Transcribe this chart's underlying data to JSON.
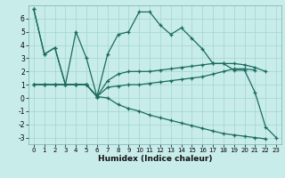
{
  "xlabel": "Humidex (Indice chaleur)",
  "background_color": "#c8ecea",
  "grid_color": "#a8d8d4",
  "line_color": "#1a6b5e",
  "xlim": [
    -0.5,
    23.5
  ],
  "ylim": [
    -3.5,
    7.0
  ],
  "yticks": [
    -3,
    -2,
    -1,
    0,
    1,
    2,
    3,
    4,
    5,
    6
  ],
  "xticks": [
    0,
    1,
    2,
    3,
    4,
    5,
    6,
    7,
    8,
    9,
    10,
    11,
    12,
    13,
    14,
    15,
    16,
    17,
    18,
    19,
    20,
    21,
    22,
    23
  ],
  "series": [
    {
      "x": [
        0,
        1,
        2,
        3,
        4,
        5,
        6,
        7,
        8,
        9,
        10,
        11,
        12,
        13,
        14,
        15,
        16,
        17,
        18,
        19,
        20,
        21,
        22,
        23
      ],
      "y": [
        6.7,
        3.3,
        3.8,
        1.0,
        5.0,
        3.0,
        0.1,
        3.3,
        4.8,
        5.0,
        6.5,
        6.5,
        5.5,
        4.8,
        5.3,
        4.5,
        3.7,
        2.6,
        2.6,
        2.1,
        2.1,
        0.4,
        -2.2,
        -3.0
      ]
    },
    {
      "x": [
        0,
        1,
        2,
        3,
        4,
        5,
        6
      ],
      "y": [
        6.7,
        3.3,
        3.8,
        1.0,
        1.0,
        1.0,
        0.1
      ]
    },
    {
      "x": [
        0,
        1,
        2,
        3,
        4,
        5,
        6,
        7,
        8,
        9,
        10,
        11,
        12,
        13,
        14,
        15,
        16,
        17,
        18,
        19,
        20,
        21,
        22
      ],
      "y": [
        1.0,
        1.0,
        1.0,
        1.0,
        1.0,
        1.0,
        0.1,
        1.3,
        1.8,
        2.0,
        2.0,
        2.0,
        2.1,
        2.2,
        2.3,
        2.4,
        2.5,
        2.6,
        2.6,
        2.6,
        2.5,
        2.3,
        2.0
      ]
    },
    {
      "x": [
        0,
        1,
        2,
        3,
        4,
        5,
        6,
        7,
        8,
        9,
        10,
        11,
        12,
        13,
        14,
        15,
        16,
        17,
        18,
        19,
        20,
        21
      ],
      "y": [
        1.0,
        1.0,
        1.0,
        1.0,
        1.0,
        1.0,
        0.1,
        0.8,
        0.9,
        1.0,
        1.0,
        1.1,
        1.2,
        1.3,
        1.4,
        1.5,
        1.6,
        1.8,
        2.0,
        2.2,
        2.2,
        2.1
      ]
    },
    {
      "x": [
        0,
        1,
        2,
        3,
        4,
        5,
        6,
        7,
        8,
        9,
        10,
        11,
        12,
        13,
        14,
        15,
        16,
        17,
        18,
        19,
        20,
        21,
        22
      ],
      "y": [
        1.0,
        1.0,
        1.0,
        1.0,
        1.0,
        1.0,
        0.1,
        0.0,
        -0.5,
        -0.8,
        -1.0,
        -1.3,
        -1.5,
        -1.7,
        -1.9,
        -2.1,
        -2.3,
        -2.5,
        -2.7,
        -2.8,
        -2.9,
        -3.0,
        -3.1
      ]
    }
  ]
}
